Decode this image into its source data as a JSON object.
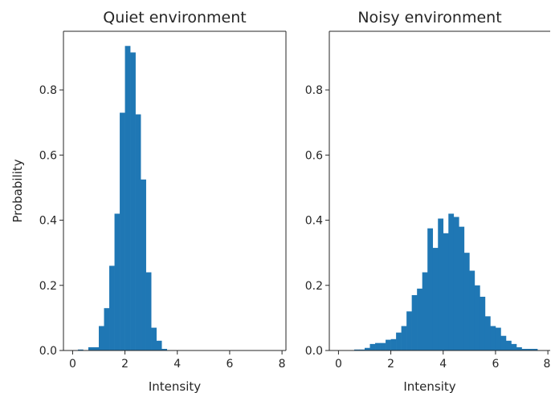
{
  "chart_data": [
    {
      "type": "bar",
      "title": "Quiet environment",
      "xlabel": "Intensity",
      "ylabel": "Probability",
      "xlim": [
        -0.35,
        8.15
      ],
      "ylim": [
        0,
        0.98
      ],
      "xticks": [
        0,
        2,
        4,
        6,
        8
      ],
      "yticks": [
        0.0,
        0.2,
        0.4,
        0.6,
        0.8
      ],
      "bin_start": 0.0,
      "bin_width": 0.2,
      "values": [
        0.0,
        0.003,
        0.0,
        0.01,
        0.01,
        0.075,
        0.13,
        0.26,
        0.42,
        0.73,
        0.935,
        0.915,
        0.725,
        0.525,
        0.24,
        0.07,
        0.03,
        0.005
      ]
    },
    {
      "type": "bar",
      "title": "Noisy environment",
      "xlabel": "Intensity",
      "ylabel": "",
      "xlim": [
        -0.35,
        8.15
      ],
      "ylim": [
        0,
        0.98
      ],
      "xticks": [
        0,
        2,
        4,
        6,
        8
      ],
      "yticks": [
        0.0,
        0.2,
        0.4,
        0.6,
        0.8
      ],
      "bin_start": 0.4,
      "bin_width": 0.2,
      "values": [
        0.0,
        0.003,
        0.003,
        0.008,
        0.02,
        0.023,
        0.023,
        0.033,
        0.035,
        0.055,
        0.075,
        0.12,
        0.17,
        0.19,
        0.24,
        0.375,
        0.315,
        0.405,
        0.36,
        0.42,
        0.41,
        0.38,
        0.3,
        0.245,
        0.2,
        0.165,
        0.105,
        0.075,
        0.07,
        0.045,
        0.03,
        0.02,
        0.01,
        0.005,
        0.005,
        0.005
      ]
    }
  ]
}
